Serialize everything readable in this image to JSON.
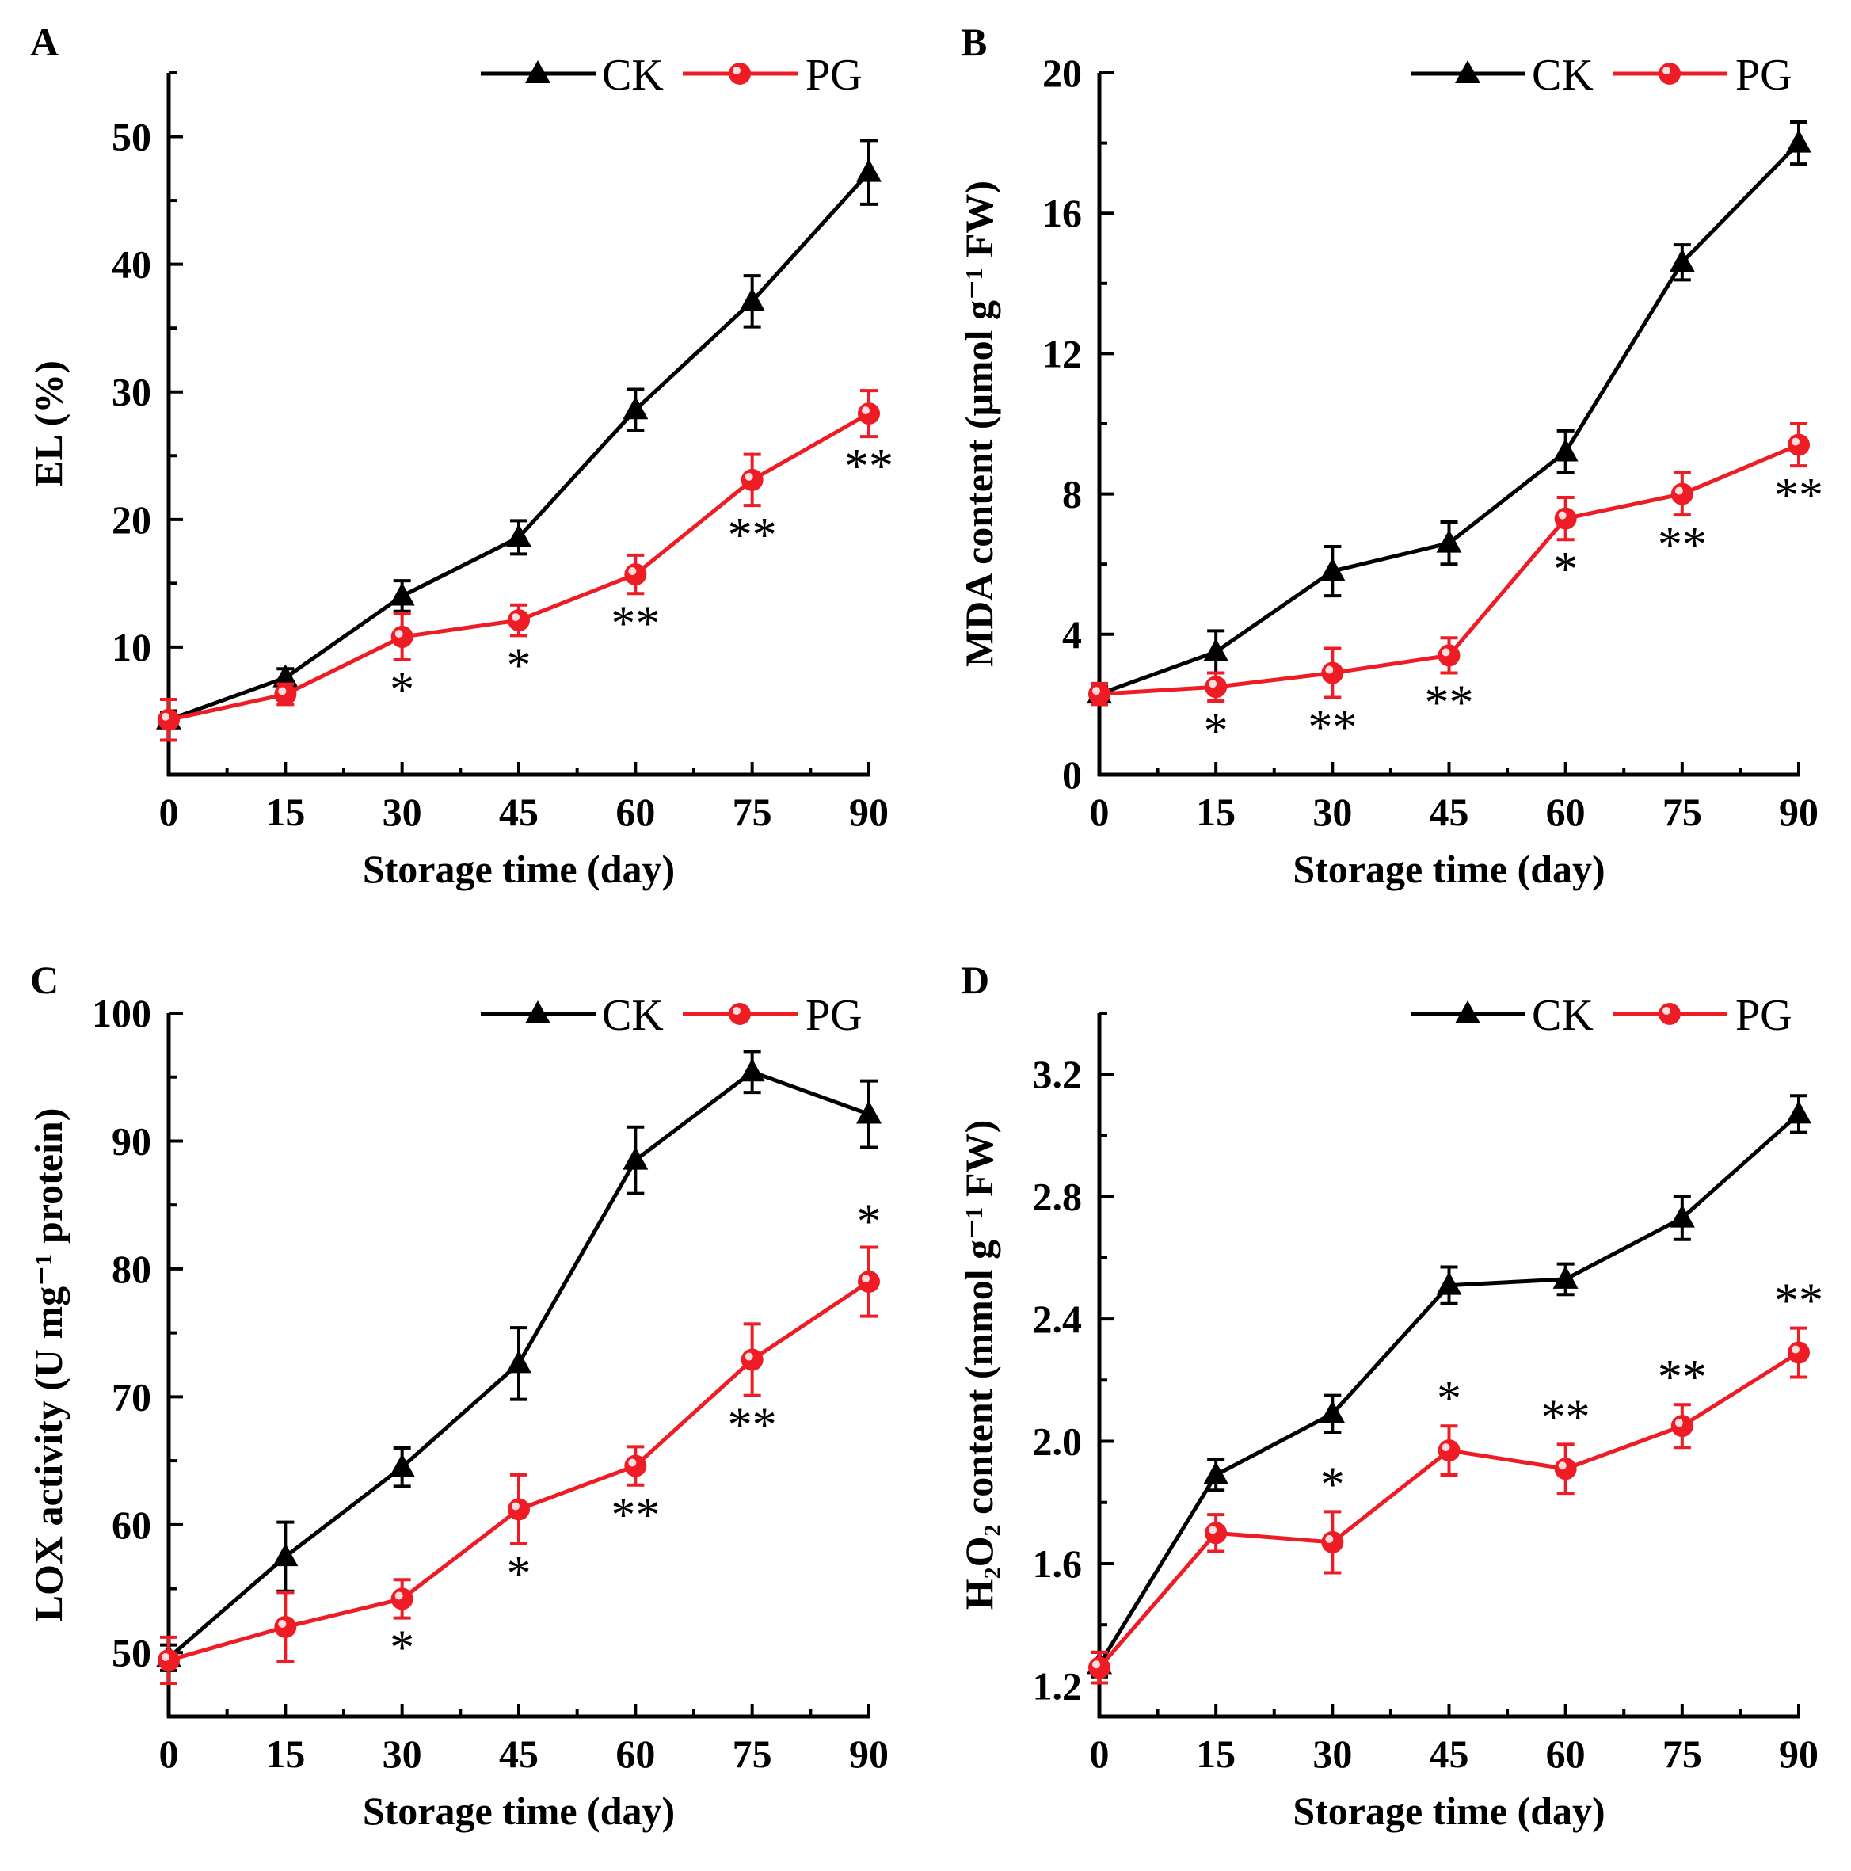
{
  "colors": {
    "ck": "#000000",
    "pg": "#ee1c24",
    "axis": "#000000"
  },
  "chart_data": [
    {
      "type": "line",
      "panel": "A",
      "xlabel": "Storage time (day)",
      "ylabel": "EL (%)",
      "x": [
        0,
        15,
        30,
        45,
        60,
        75,
        90
      ],
      "xticks": [
        "0",
        "15",
        "30",
        "45",
        "60",
        "75",
        "90"
      ],
      "xlim": [
        0,
        90
      ],
      "ylim": [
        0,
        55
      ],
      "yticks": [
        "10",
        "20",
        "30",
        "40",
        "50"
      ],
      "ytick_values": [
        10,
        20,
        30,
        40,
        50
      ],
      "legend": "top-right",
      "series": [
        {
          "name": "CK",
          "marker": "triangle",
          "color": "#000000",
          "values": [
            4.3,
            7.6,
            14.0,
            18.6,
            28.6,
            37.1,
            47.2
          ],
          "errors": [
            0.6,
            0.7,
            1.2,
            1.3,
            1.6,
            2.0,
            2.5
          ]
        },
        {
          "name": "PG",
          "marker": "circle",
          "color": "#ee1c24",
          "values": [
            4.3,
            6.3,
            10.8,
            12.1,
            15.7,
            23.1,
            28.3
          ],
          "errors": [
            1.6,
            0.8,
            1.8,
            1.2,
            1.5,
            2.0,
            1.8
          ]
        }
      ],
      "annotations": [
        {
          "x": 30,
          "text": "*"
        },
        {
          "x": 45,
          "text": "*"
        },
        {
          "x": 60,
          "text": "**"
        },
        {
          "x": 75,
          "text": "**"
        },
        {
          "x": 90,
          "text": "**"
        }
      ]
    },
    {
      "type": "line",
      "panel": "B",
      "xlabel": "Storage time (day)",
      "ylabel": "MDA content (μmol g⁻¹ FW)",
      "x": [
        0,
        15,
        30,
        45,
        60,
        75,
        90
      ],
      "xticks": [
        "0",
        "15",
        "30",
        "45",
        "60",
        "75",
        "90"
      ],
      "xlim": [
        0,
        90
      ],
      "ylim": [
        0,
        20
      ],
      "yticks": [
        "0",
        "4",
        "8",
        "12",
        "16",
        "20"
      ],
      "ytick_values": [
        0,
        4,
        8,
        12,
        16,
        20
      ],
      "legend": "top-right",
      "series": [
        {
          "name": "CK",
          "marker": "triangle",
          "color": "#000000",
          "values": [
            2.3,
            3.5,
            5.8,
            6.6,
            9.2,
            14.6,
            18.0
          ],
          "errors": [
            0.2,
            0.6,
            0.7,
            0.6,
            0.6,
            0.5,
            0.6
          ]
        },
        {
          "name": "PG",
          "marker": "circle",
          "color": "#ee1c24",
          "values": [
            2.3,
            2.5,
            2.9,
            3.4,
            7.3,
            8.0,
            9.4
          ],
          "errors": [
            0.3,
            0.4,
            0.7,
            0.5,
            0.6,
            0.6,
            0.6
          ]
        }
      ],
      "annotations": [
        {
          "x": 15,
          "text": "*"
        },
        {
          "x": 30,
          "text": "**"
        },
        {
          "x": 45,
          "text": "**"
        },
        {
          "x": 60,
          "text": "*"
        },
        {
          "x": 75,
          "text": "**"
        },
        {
          "x": 90,
          "text": "**"
        }
      ]
    },
    {
      "type": "line",
      "panel": "C",
      "xlabel": "Storage time (day)",
      "ylabel": "LOX activity (U mg⁻¹ protein)",
      "x": [
        0,
        15,
        30,
        45,
        60,
        75,
        90
      ],
      "xticks": [
        "0",
        "15",
        "30",
        "45",
        "60",
        "75",
        "90"
      ],
      "xlim": [
        0,
        90
      ],
      "ylim": [
        45,
        100
      ],
      "yticks": [
        "50",
        "60",
        "70",
        "80",
        "90",
        "100"
      ],
      "ytick_values": [
        50,
        60,
        70,
        80,
        90,
        100
      ],
      "legend": "top-right",
      "series": [
        {
          "name": "CK",
          "marker": "triangle",
          "color": "#000000",
          "values": [
            49.6,
            57.5,
            64.5,
            72.6,
            88.5,
            95.4,
            92.1
          ],
          "errors": [
            1.0,
            2.7,
            1.5,
            2.8,
            2.6,
            1.6,
            2.6
          ]
        },
        {
          "name": "PG",
          "marker": "circle",
          "color": "#ee1c24",
          "values": [
            49.4,
            52.0,
            54.2,
            61.2,
            64.6,
            72.9,
            79.0
          ],
          "errors": [
            1.8,
            2.7,
            1.5,
            2.7,
            1.5,
            2.8,
            2.7
          ]
        }
      ],
      "annotations": [
        {
          "x": 30,
          "text": "*"
        },
        {
          "x": 45,
          "text": "*"
        },
        {
          "x": 60,
          "text": "**"
        },
        {
          "x": 75,
          "text": "**"
        },
        {
          "x": 90,
          "text": "*"
        }
      ]
    },
    {
      "type": "line",
      "panel": "D",
      "xlabel": "Storage time (day)",
      "ylabel": "H₂O₂ content (mmol g⁻¹ FW)",
      "x": [
        0,
        15,
        30,
        45,
        60,
        75,
        90
      ],
      "xticks": [
        "0",
        "15",
        "30",
        "45",
        "60",
        "75",
        "90"
      ],
      "xlim": [
        0,
        90
      ],
      "ylim": [
        1.1,
        3.4
      ],
      "yticks": [
        "1.2",
        "1.6",
        "2.0",
        "2.4",
        "2.8",
        "3.2"
      ],
      "ytick_values": [
        1.2,
        1.6,
        2.0,
        2.4,
        2.8,
        3.2
      ],
      "legend": "top-right",
      "series": [
        {
          "name": "CK",
          "marker": "triangle",
          "color": "#000000",
          "values": [
            1.27,
            1.89,
            2.09,
            2.51,
            2.53,
            2.73,
            3.07
          ],
          "errors": [
            0.04,
            0.05,
            0.06,
            0.06,
            0.05,
            0.07,
            0.06
          ]
        },
        {
          "name": "PG",
          "marker": "circle",
          "color": "#ee1c24",
          "values": [
            1.26,
            1.7,
            1.67,
            1.97,
            1.91,
            2.05,
            2.29
          ],
          "errors": [
            0.05,
            0.06,
            0.1,
            0.08,
            0.08,
            0.07,
            0.08
          ]
        }
      ],
      "annotations": [
        {
          "x": 30,
          "text": "*"
        },
        {
          "x": 45,
          "text": "*"
        },
        {
          "x": 60,
          "text": "**"
        },
        {
          "x": 75,
          "text": "**"
        },
        {
          "x": 90,
          "text": "**"
        }
      ]
    }
  ]
}
